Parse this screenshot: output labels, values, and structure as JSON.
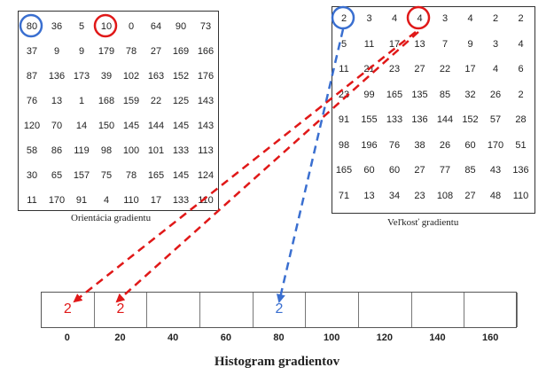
{
  "orientation_matrix": {
    "caption": "Orientácia gradientu",
    "rows": [
      [
        "80",
        "36",
        "5",
        "10",
        "0",
        "64",
        "90",
        "73"
      ],
      [
        "37",
        "9",
        "9",
        "179",
        "78",
        "27",
        "169",
        "166"
      ],
      [
        "87",
        "136",
        "173",
        "39",
        "102",
        "163",
        "152",
        "176"
      ],
      [
        "76",
        "13",
        "1",
        "168",
        "159",
        "22",
        "125",
        "143"
      ],
      [
        "120",
        "70",
        "14",
        "150",
        "145",
        "144",
        "145",
        "143"
      ],
      [
        "58",
        "86",
        "119",
        "98",
        "100",
        "101",
        "133",
        "113"
      ],
      [
        "30",
        "65",
        "157",
        "75",
        "78",
        "165",
        "145",
        "124"
      ],
      [
        "11",
        "170",
        "91",
        "4",
        "110",
        "17",
        "133",
        "110"
      ]
    ],
    "highlighted": [
      {
        "row": 0,
        "col": 0,
        "color": "#3a6fd0"
      },
      {
        "row": 0,
        "col": 3,
        "color": "#e01818"
      }
    ]
  },
  "magnitude_matrix": {
    "caption": "Veľkosť gradientu",
    "rows": [
      [
        "2",
        "3",
        "4",
        "4",
        "3",
        "4",
        "2",
        "2"
      ],
      [
        "5",
        "11",
        "17",
        "13",
        "7",
        "9",
        "3",
        "4"
      ],
      [
        "11",
        "21",
        "23",
        "27",
        "22",
        "17",
        "4",
        "6"
      ],
      [
        "23",
        "99",
        "165",
        "135",
        "85",
        "32",
        "26",
        "2"
      ],
      [
        "91",
        "155",
        "133",
        "136",
        "144",
        "152",
        "57",
        "28"
      ],
      [
        "98",
        "196",
        "76",
        "38",
        "26",
        "60",
        "170",
        "51"
      ],
      [
        "165",
        "60",
        "60",
        "27",
        "77",
        "85",
        "43",
        "136"
      ],
      [
        "71",
        "13",
        "34",
        "23",
        "108",
        "27",
        "48",
        "110"
      ]
    ],
    "highlighted": [
      {
        "row": 0,
        "col": 0,
        "color": "#3a6fd0"
      },
      {
        "row": 0,
        "col": 3,
        "color": "#e01818"
      }
    ]
  },
  "histogram": {
    "title": "Histogram gradientov",
    "bins": [
      "0",
      "20",
      "40",
      "60",
      "80",
      "100",
      "120",
      "140",
      "160"
    ],
    "values": [
      {
        "bin": 0,
        "text": "2",
        "color": "#e01818"
      },
      {
        "bin": 1,
        "text": "2",
        "color": "#e01818"
      },
      {
        "bin": 4,
        "text": "2",
        "color": "#3a6fd0"
      }
    ]
  },
  "colors": {
    "red": "#e01818",
    "blue": "#3a6fd0"
  }
}
